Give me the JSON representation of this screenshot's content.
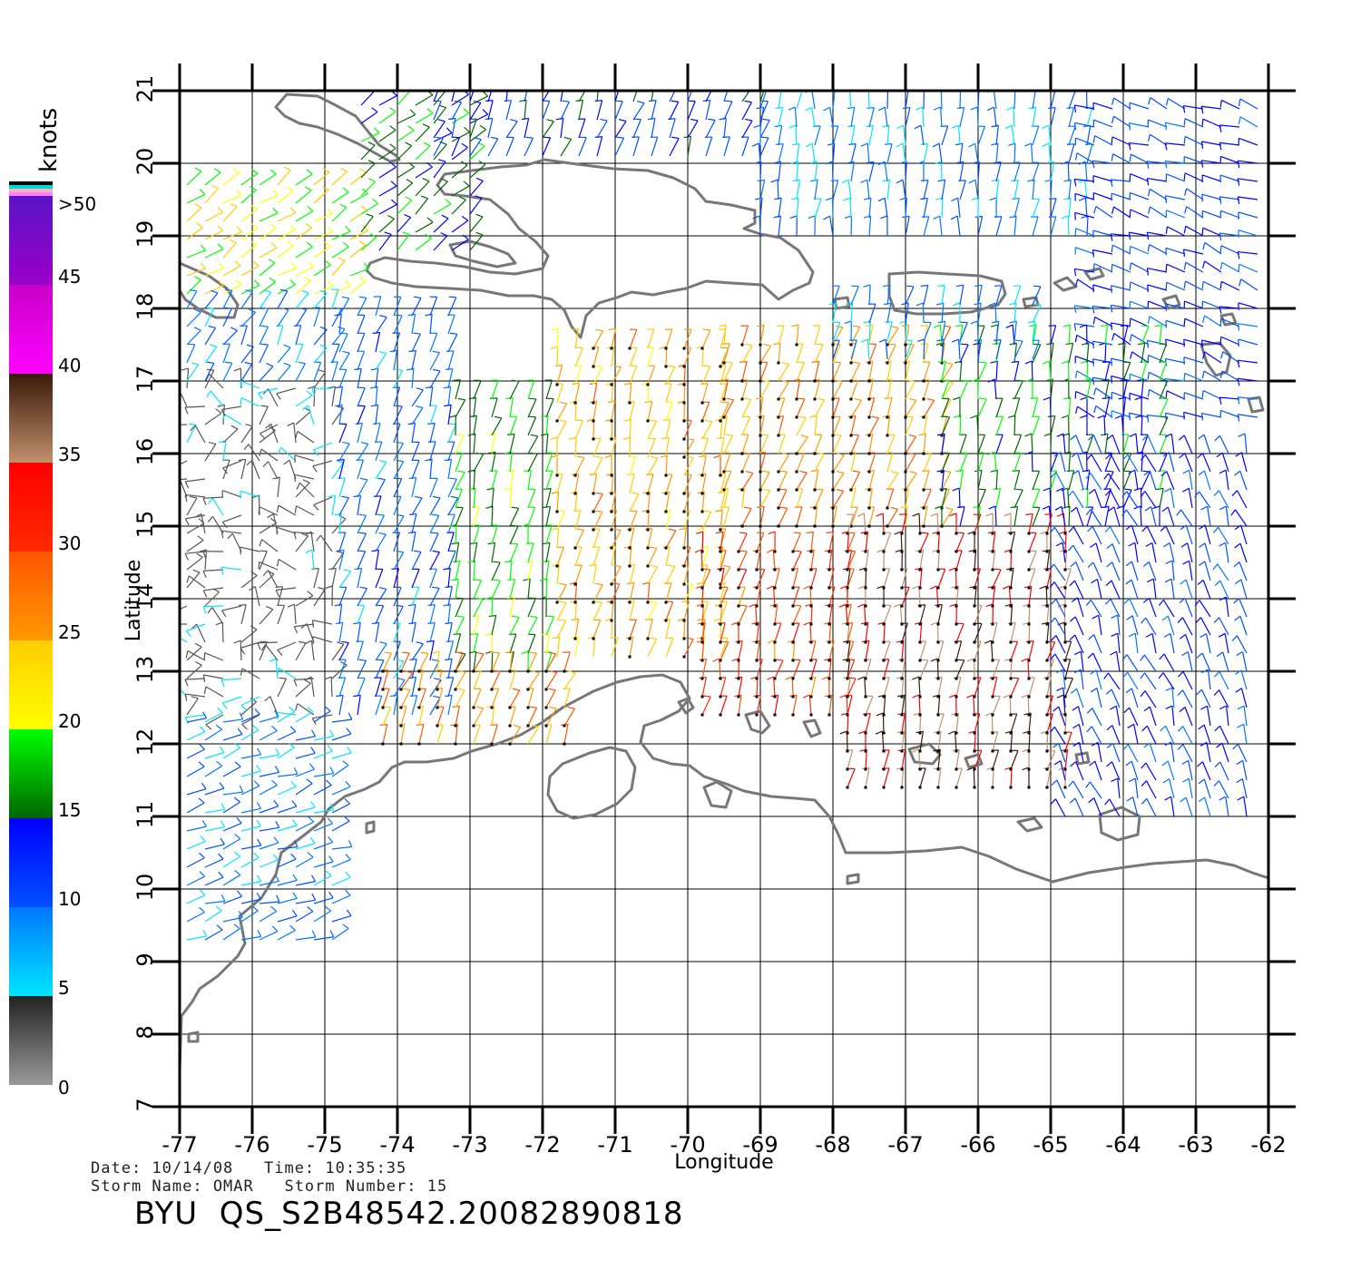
{
  "map": {
    "xlabel": "Longitude",
    "ylabel": "Latitude",
    "lon_range": [
      -77,
      -62
    ],
    "lat_range": [
      7,
      21
    ],
    "lon_ticks": [
      "-77",
      "-76",
      "-75",
      "-74",
      "-73",
      "-72",
      "-71",
      "-70",
      "-69",
      "-68",
      "-67",
      "-66",
      "-65",
      "-64",
      "-63",
      "-62"
    ],
    "lat_ticks": [
      "7",
      "8",
      "9",
      "10",
      "11",
      "12",
      "13",
      "14",
      "15",
      "16",
      "17",
      "18",
      "19",
      "20",
      "21"
    ],
    "grid": true,
    "coastline_color": "#777777"
  },
  "colorbar": {
    "unit_label": "knots",
    "labels": [
      ">50",
      "45",
      "40",
      "35",
      "30",
      "25",
      "20",
      "15",
      "10",
      "5",
      "0"
    ],
    "stops": [
      {
        "from": 0,
        "to": 5,
        "top": "#222222",
        "bottom": "#999999"
      },
      {
        "from": 5,
        "to": 10,
        "top": "#0077ff",
        "bottom": "#00e5ff"
      },
      {
        "from": 10,
        "to": 15,
        "top": "#0000ff",
        "bottom": "#0050ff"
      },
      {
        "from": 15,
        "to": 20,
        "top": "#00ff00",
        "bottom": "#006600"
      },
      {
        "from": 20,
        "to": 25,
        "top": "#ffcc00",
        "bottom": "#ffff00"
      },
      {
        "from": 25,
        "to": 30,
        "top": "#ff5500",
        "bottom": "#ff9900"
      },
      {
        "from": 30,
        "to": 35,
        "top": "#ff0000",
        "bottom": "#ff2a00"
      },
      {
        "from": 35,
        "to": 40,
        "top": "#3a1a0a",
        "bottom": "#c0906a"
      },
      {
        "from": 40,
        "to": 45,
        "top": "#c800c8",
        "bottom": "#ff00ff"
      },
      {
        "from": 45,
        "to": 50,
        "top": "#5a14c8",
        "bottom": "#9a00c8"
      }
    ],
    "top_swatches": [
      "#000000",
      "#00d8d8",
      "#ffb0c0",
      "#ff80ff"
    ]
  },
  "wind_regions": [
    {
      "lon": [
        -76.9,
        -74.5
      ],
      "lat": [
        18.2,
        19.9
      ],
      "speed": 21,
      "dir": 35
    },
    {
      "lon": [
        -74.5,
        -73.0
      ],
      "lat": [
        18.8,
        20.8
      ],
      "speed": 16,
      "dir": 40
    },
    {
      "lon": [
        -73.5,
        -69.0
      ],
      "lat": [
        20.1,
        20.95
      ],
      "speed": 13,
      "dir": 70
    },
    {
      "lon": [
        -69.0,
        -64.5
      ],
      "lat": [
        19.0,
        20.95
      ],
      "speed": 9,
      "dir": 85
    },
    {
      "lon": [
        -64.4,
        -62.1
      ],
      "lat": [
        16.5,
        20.9
      ],
      "speed": 12,
      "dir": 160
    },
    {
      "lon": [
        -76.9,
        -74.8
      ],
      "lat": [
        12.4,
        17.0
      ],
      "speed": 3,
      "dir": 120
    },
    {
      "lon": [
        -76.9,
        -74.8
      ],
      "lat": [
        17.0,
        18.0
      ],
      "speed": 9,
      "dir": 60
    },
    {
      "lon": [
        -74.8,
        -73.2
      ],
      "lat": [
        12.4,
        18.0
      ],
      "speed": 10,
      "dir": 70
    },
    {
      "lon": [
        -73.2,
        -71.8
      ],
      "lat": [
        13.0,
        16.8
      ],
      "speed": 18,
      "dir": 75
    },
    {
      "lon": [
        -71.8,
        -69.5
      ],
      "lat": [
        13.2,
        17.6
      ],
      "speed": 25,
      "dir": 75
    },
    {
      "lon": [
        -69.5,
        -66.5
      ],
      "lat": [
        15.0,
        17.5
      ],
      "speed": 26,
      "dir": 70
    },
    {
      "lon": [
        -66.5,
        -63.5
      ],
      "lat": [
        15.0,
        17.5
      ],
      "speed": 16,
      "dir": 80
    },
    {
      "lon": [
        -67.8,
        -64.8
      ],
      "lat": [
        11.4,
        14.9
      ],
      "speed": 36,
      "dir": 80
    },
    {
      "lon": [
        -69.8,
        -67.8
      ],
      "lat": [
        12.4,
        14.8
      ],
      "speed": 30,
      "dir": 80
    },
    {
      "lon": [
        -64.8,
        -62.1
      ],
      "lat": [
        11.0,
        16.0
      ],
      "speed": 12,
      "dir": 110
    },
    {
      "lon": [
        -74.2,
        -71.5
      ],
      "lat": [
        12.0,
        13.0
      ],
      "speed": 27,
      "dir": 70
    },
    {
      "lon": [
        -68.0,
        -65.2
      ],
      "lat": [
        17.3,
        18.2
      ],
      "speed": 9,
      "dir": 80
    },
    {
      "lon": [
        -76.9,
        -74.8
      ],
      "lat": [
        9.3,
        12.4
      ],
      "speed": 9,
      "dir": 20
    }
  ]
}
